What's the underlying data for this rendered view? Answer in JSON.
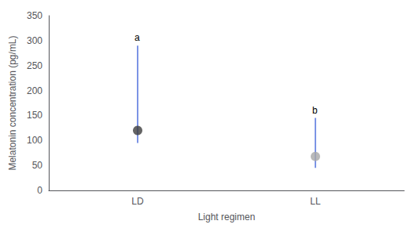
{
  "chart_data": {
    "type": "scatter",
    "categories": [
      "LD",
      "LL"
    ],
    "values": [
      120,
      68
    ],
    "error_upper": [
      170,
      77
    ],
    "error_lower": [
      25,
      23
    ],
    "colors": [
      "#3d3d3d",
      "#a8a8a8"
    ],
    "annotations": [
      "a",
      "b"
    ],
    "xlabel": "Light regimen",
    "ylabel": "Melatonin concentration (pg/mL)",
    "ylim": [
      0,
      350
    ],
    "yticks": [
      0,
      50,
      100,
      150,
      200,
      250,
      300,
      350
    ],
    "grid": false
  }
}
